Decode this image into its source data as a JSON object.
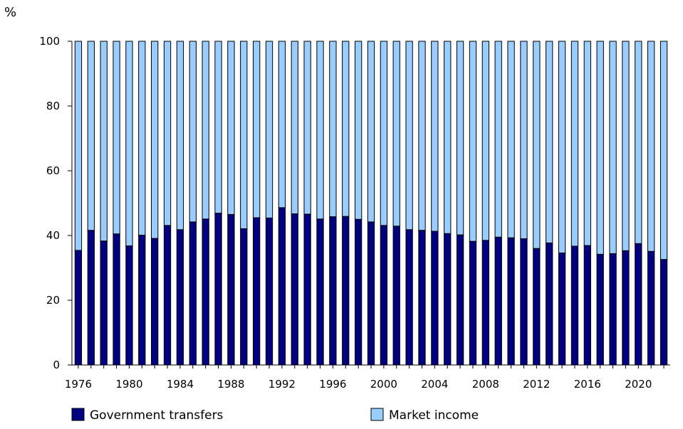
{
  "chart_data": {
    "type": "bar",
    "stacked": true,
    "ylabel": "%",
    "ylim": [
      0,
      100
    ],
    "yticks": [
      0,
      20,
      40,
      60,
      80,
      100
    ],
    "xtick_labels": [
      "1976",
      "1980",
      "1984",
      "1988",
      "1992",
      "1996",
      "2000",
      "2004",
      "2008",
      "2012",
      "2016",
      "2020"
    ],
    "categories": [
      1976,
      1977,
      1978,
      1979,
      1980,
      1981,
      1982,
      1983,
      1984,
      1985,
      1986,
      1987,
      1988,
      1989,
      1990,
      1991,
      1992,
      1993,
      1994,
      1995,
      1996,
      1997,
      1998,
      1999,
      2000,
      2001,
      2002,
      2003,
      2004,
      2005,
      2006,
      2007,
      2008,
      2009,
      2010,
      2011,
      2012,
      2013,
      2014,
      2015,
      2016,
      2017,
      2018,
      2019,
      2020,
      2021,
      2022
    ],
    "legend_position": "bottom",
    "colors": {
      "Government transfers": "#000080",
      "Market income": "#99CCFF",
      "border": "#000000"
    },
    "series": [
      {
        "name": "Government transfers",
        "values": [
          35.4,
          41.6,
          38.3,
          40.5,
          36.8,
          40.1,
          39.1,
          43.1,
          41.8,
          44.2,
          45.1,
          46.9,
          46.5,
          42.1,
          45.5,
          45.4,
          48.6,
          46.7,
          46.6,
          45.1,
          45.8,
          45.9,
          45.0,
          44.2,
          43.1,
          42.9,
          41.8,
          41.6,
          41.3,
          40.6,
          40.2,
          38.2,
          38.5,
          39.5,
          39.3,
          39.0,
          36.0,
          37.7,
          34.6,
          36.7,
          36.9,
          34.2,
          34.4,
          35.3,
          37.5,
          35.1,
          32.6
        ]
      },
      {
        "name": "Market income",
        "values": [
          64.6,
          58.4,
          61.7,
          59.5,
          63.2,
          59.9,
          60.9,
          56.9,
          58.2,
          55.8,
          54.9,
          53.1,
          53.5,
          57.9,
          54.5,
          54.6,
          51.4,
          53.3,
          53.4,
          54.9,
          54.2,
          54.1,
          55.0,
          55.8,
          56.9,
          57.1,
          58.2,
          58.4,
          58.7,
          59.4,
          59.8,
          61.8,
          61.5,
          60.5,
          60.7,
          61.0,
          64.0,
          62.3,
          65.4,
          63.3,
          63.1,
          65.8,
          65.6,
          64.7,
          62.5,
          64.9,
          67.4
        ]
      }
    ]
  }
}
